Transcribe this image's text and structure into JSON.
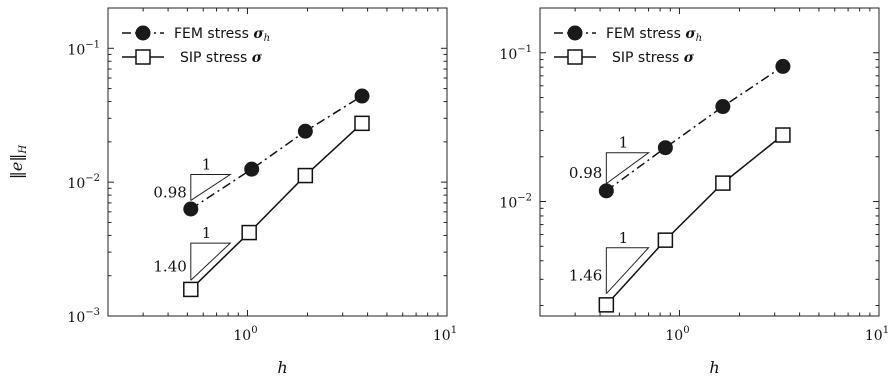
{
  "chart_data": [
    {
      "type": "line",
      "xscale": "log",
      "yscale": "log",
      "xlim": [
        0.2,
        10
      ],
      "ylim": [
        0.001,
        0.2
      ],
      "x_ticks": [
        "10^0",
        "10^1"
      ],
      "y_ticks": [
        "10^-3",
        "10^-2",
        "10^-1"
      ],
      "xlabel": "h",
      "ylabel": "||e||_{H_0}",
      "legend": {
        "location": "top-left"
      },
      "series": [
        {
          "name": "FEM stress σ_h",
          "name_text": "FEM stress ",
          "name_symbol": "σ",
          "name_sub": "h",
          "style": "dash-dot",
          "marker": "filled-circle",
          "x": [
            0.52,
            1.05,
            1.95,
            3.75
          ],
          "y": [
            0.0063,
            0.0125,
            0.024,
            0.044
          ]
        },
        {
          "name": "SIP stress σ",
          "name_text": "SIP stress ",
          "name_symbol": "σ",
          "name_sub": "",
          "style": "solid",
          "marker": "open-square",
          "x": [
            0.52,
            1.02,
            1.95,
            3.75
          ],
          "y": [
            0.00158,
            0.0042,
            0.0112,
            0.0275
          ]
        }
      ],
      "slope_triangles": [
        {
          "slope": 0.98,
          "slope_label": "0.98",
          "run_label": "1",
          "x0": 0.52,
          "x1": 0.82,
          "y0": 0.0073
        },
        {
          "slope": 1.4,
          "slope_label": "1.40",
          "run_label": "1",
          "x0": 0.52,
          "x1": 0.82,
          "y0": 0.00185
        }
      ]
    },
    {
      "type": "line",
      "xscale": "log",
      "yscale": "log",
      "xlim": [
        0.2,
        10
      ],
      "ylim": [
        0.0017,
        0.2
      ],
      "x_ticks": [
        "10^0",
        "10^1"
      ],
      "y_ticks": [
        "10^-2",
        "10^-1"
      ],
      "xlabel": "h",
      "ylabel": "",
      "legend": {
        "location": "top-left"
      },
      "series": [
        {
          "name": "FEM stress σ_h",
          "name_text": "FEM stress ",
          "name_symbol": "σ",
          "name_sub": "h",
          "style": "dash-dot",
          "marker": "filled-circle",
          "x": [
            0.43,
            0.85,
            1.65,
            3.3
          ],
          "y": [
            0.0118,
            0.023,
            0.0435,
            0.081
          ]
        },
        {
          "name": "SIP stress σ",
          "name_text": "SIP stress ",
          "name_symbol": "σ",
          "name_sub": "",
          "style": "solid",
          "marker": "open-square",
          "x": [
            0.43,
            0.85,
            1.65,
            3.3
          ],
          "y": [
            0.00202,
            0.0055,
            0.0133,
            0.028
          ]
        }
      ],
      "slope_triangles": [
        {
          "slope": 0.98,
          "slope_label": "0.98",
          "run_label": "1",
          "x0": 0.43,
          "x1": 0.7,
          "y0": 0.0132
        },
        {
          "slope": 1.46,
          "slope_label": "1.46",
          "run_label": "1",
          "x0": 0.43,
          "x1": 0.7,
          "y0": 0.0024
        }
      ]
    }
  ]
}
